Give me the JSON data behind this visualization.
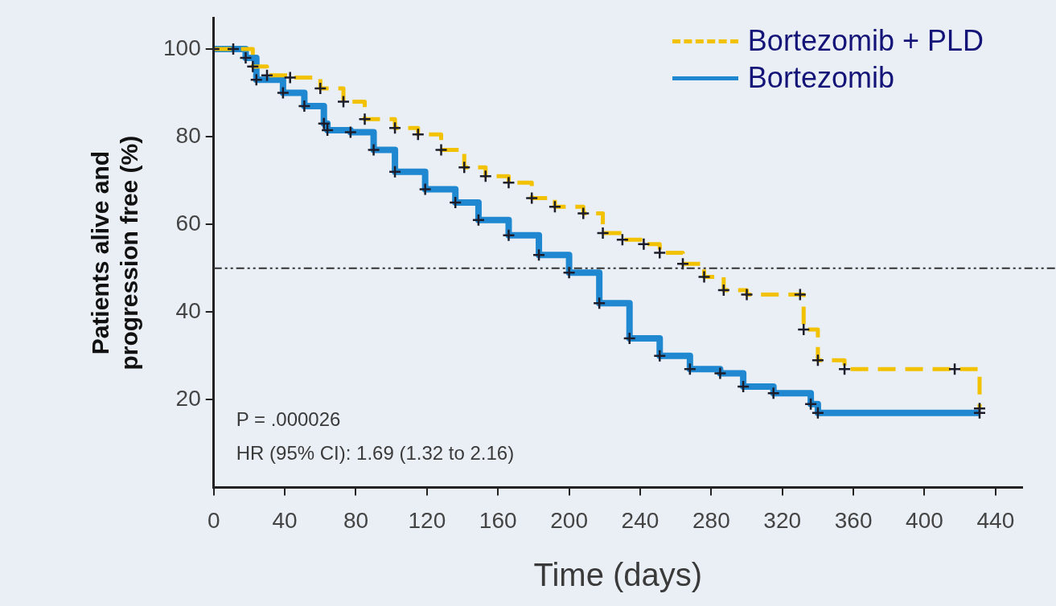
{
  "chart_data": {
    "type": "step",
    "xlabel": "Time (days)",
    "ylabel": "Patients alive and progression free (%)",
    "xlim": [
      0,
      455
    ],
    "xticks": [
      0,
      40,
      80,
      120,
      160,
      200,
      240,
      280,
      320,
      360,
      400,
      440
    ],
    "ylim": [
      0,
      107
    ],
    "yticks": [
      20,
      40,
      60,
      80,
      100
    ],
    "grid": false,
    "legend": "top right",
    "marker": "cross",
    "ref_lines": [
      {
        "axis": "y",
        "value": 50,
        "line_style": "dashed",
        "color": "#333333"
      }
    ],
    "annotations": [
      "P = .000026",
      "HR (95% CI): 1.69 (1.32 to 2.16)"
    ],
    "series": [
      {
        "name": "Bortezomib + PLD",
        "color": "#f2c200",
        "line_style": "dashed",
        "x": [
          0,
          11,
          22,
          30,
          43,
          60,
          73,
          85,
          102,
          115,
          128,
          141,
          153,
          166,
          179,
          192,
          208,
          219,
          230,
          242,
          251,
          264,
          276,
          287,
          300,
          330,
          332,
          340,
          355,
          417,
          431
        ],
        "values": [
          100,
          100,
          96,
          94,
          93.5,
          91,
          88,
          84,
          82,
          80.5,
          77,
          73,
          71,
          69.5,
          66,
          64,
          62.5,
          58,
          56.5,
          55.5,
          53.5,
          51,
          48,
          45,
          44,
          44,
          36,
          29,
          27,
          27,
          18
        ]
      },
      {
        "name": "Bortezomib",
        "color": "#1f88d0",
        "line_style": "solid",
        "x": [
          0,
          18,
          24,
          39,
          51,
          62,
          64,
          77,
          90,
          102,
          119,
          136,
          149,
          166,
          183,
          200,
          217,
          234,
          251,
          268,
          285,
          298,
          315,
          336,
          340,
          431
        ],
        "values": [
          100,
          98,
          93,
          90,
          87,
          83,
          81.5,
          81,
          77,
          72,
          68,
          65,
          61,
          57.5,
          53,
          49,
          42,
          34,
          30,
          27,
          26,
          23,
          21.5,
          19,
          17,
          17
        ]
      }
    ]
  }
}
